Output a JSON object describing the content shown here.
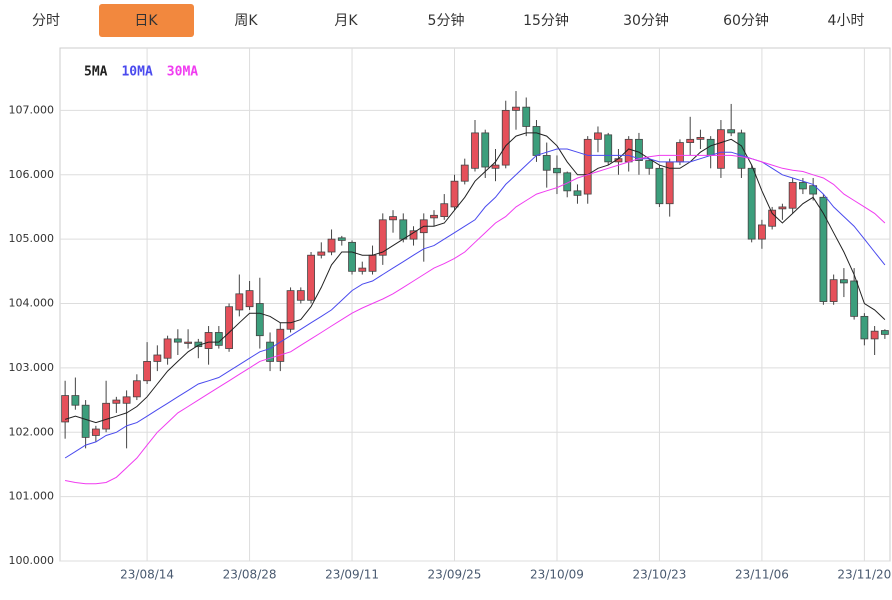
{
  "tabs": [
    "分时",
    "日K",
    "周K",
    "月K",
    "5分钟",
    "15分钟",
    "30分钟",
    "60分钟",
    "4小时"
  ],
  "active_tab": 1,
  "chart_data": {
    "type": "candlestick",
    "categories": [
      null,
      null,
      null,
      null,
      null,
      null,
      null,
      null,
      "23/08/14",
      null,
      null,
      null,
      null,
      null,
      null,
      null,
      null,
      null,
      "23/08/28",
      null,
      null,
      null,
      null,
      null,
      null,
      null,
      null,
      null,
      "23/09/11",
      null,
      null,
      null,
      null,
      null,
      null,
      null,
      null,
      null,
      "23/09/25",
      null,
      null,
      null,
      null,
      null,
      null,
      null,
      null,
      null,
      "23/10/09",
      null,
      null,
      null,
      null,
      null,
      null,
      null,
      null,
      null,
      "23/10/23",
      null,
      null,
      null,
      null,
      null,
      null,
      null,
      null,
      null,
      "23/11/06",
      null,
      null,
      null,
      null,
      null,
      null,
      null,
      null,
      null,
      "23/11/20",
      null,
      null
    ],
    "open": [
      102.16,
      102.57,
      102.42,
      101.95,
      102.05,
      102.45,
      102.45,
      102.55,
      102.8,
      103.1,
      103.15,
      103.45,
      103.38,
      103.4,
      103.3,
      103.55,
      103.3,
      103.9,
      103.95,
      104.0,
      103.4,
      103.1,
      103.6,
      104.05,
      104.05,
      104.75,
      104.8,
      105.02,
      104.95,
      104.5,
      104.5,
      104.75,
      105.3,
      105.3,
      105.0,
      105.1,
      105.33,
      105.35,
      105.5,
      105.9,
      106.1,
      106.65,
      106.1,
      106.15,
      107.0,
      107.05,
      106.75,
      106.3,
      106.1,
      106.03,
      105.75,
      105.7,
      106.55,
      106.62,
      106.2,
      106.2,
      106.55,
      106.22,
      106.1,
      105.55,
      106.2,
      106.5,
      106.55,
      106.55,
      106.1,
      106.7,
      106.65,
      106.1,
      105.0,
      105.2,
      105.47,
      105.48,
      105.88,
      105.83,
      105.65,
      104.03,
      104.37,
      104.35,
      103.8,
      103.45,
      103.58
    ],
    "high": [
      102.8,
      102.85,
      102.5,
      102.1,
      102.8,
      102.55,
      102.65,
      102.9,
      103.4,
      103.35,
      103.5,
      103.6,
      103.6,
      103.45,
      103.65,
      103.65,
      104.0,
      104.45,
      104.35,
      104.4,
      103.55,
      103.7,
      104.25,
      104.25,
      104.8,
      104.95,
      105.15,
      105.05,
      104.98,
      104.65,
      104.9,
      105.4,
      105.45,
      105.4,
      105.2,
      105.4,
      105.45,
      105.7,
      106.0,
      106.25,
      106.85,
      106.7,
      106.4,
      107.15,
      107.3,
      107.2,
      106.85,
      106.5,
      106.3,
      106.05,
      105.85,
      106.6,
      106.75,
      106.65,
      106.4,
      106.6,
      106.65,
      106.25,
      106.15,
      106.25,
      106.55,
      106.9,
      106.7,
      106.6,
      106.85,
      107.1,
      106.7,
      106.15,
      105.3,
      105.5,
      105.55,
      105.95,
      105.95,
      105.95,
      105.7,
      104.45,
      104.55,
      104.55,
      103.85,
      103.65,
      103.6
    ],
    "low": [
      101.9,
      102.35,
      101.75,
      101.85,
      102.0,
      102.3,
      101.75,
      102.5,
      102.75,
      102.95,
      103.05,
      103.2,
      103.3,
      103.15,
      103.05,
      103.3,
      103.25,
      103.8,
      103.9,
      103.3,
      102.95,
      102.95,
      103.55,
      104.0,
      104.0,
      104.7,
      104.75,
      104.9,
      104.45,
      104.45,
      104.45,
      104.6,
      105.1,
      104.95,
      104.9,
      104.65,
      105.2,
      105.3,
      105.45,
      105.85,
      106.05,
      105.95,
      105.9,
      106.1,
      106.7,
      106.6,
      106.2,
      105.8,
      105.7,
      105.65,
      105.55,
      105.55,
      106.35,
      106.15,
      106.0,
      106.05,
      106.0,
      106.0,
      105.5,
      105.35,
      106.15,
      106.3,
      106.4,
      106.1,
      105.95,
      106.6,
      105.95,
      104.95,
      104.85,
      105.15,
      105.3,
      105.4,
      105.7,
      105.6,
      103.98,
      103.98,
      104.1,
      103.75,
      103.35,
      103.2,
      103.45
    ],
    "close": [
      102.57,
      102.42,
      101.92,
      102.05,
      102.45,
      102.5,
      102.55,
      102.8,
      103.1,
      103.2,
      103.45,
      103.4,
      103.4,
      103.33,
      103.55,
      103.35,
      103.95,
      104.15,
      104.2,
      103.5,
      103.1,
      103.6,
      104.2,
      104.2,
      104.75,
      104.8,
      105.0,
      104.98,
      104.5,
      104.55,
      104.75,
      105.3,
      105.35,
      105.0,
      105.13,
      105.3,
      105.37,
      105.55,
      105.9,
      106.15,
      106.65,
      106.12,
      106.15,
      107.0,
      107.05,
      106.75,
      106.3,
      106.07,
      106.03,
      105.75,
      105.68,
      106.55,
      106.65,
      106.2,
      106.25,
      106.55,
      106.22,
      106.1,
      105.55,
      106.2,
      106.5,
      106.55,
      106.58,
      106.3,
      106.7,
      106.65,
      106.1,
      105.0,
      105.22,
      105.45,
      105.5,
      105.88,
      105.78,
      105.7,
      104.03,
      104.37,
      104.32,
      103.8,
      103.45,
      103.57,
      103.52
    ],
    "up_color": "#e5505a",
    "down_color": "#3c9e7c",
    "series": [
      {
        "name": "5MA",
        "color": "#222222",
        "values": [
          102.2,
          102.25,
          102.2,
          102.15,
          102.2,
          102.25,
          102.3,
          102.4,
          102.55,
          102.75,
          102.95,
          103.1,
          103.25,
          103.35,
          103.4,
          103.4,
          103.55,
          103.7,
          103.85,
          103.85,
          103.8,
          103.7,
          103.7,
          103.75,
          103.95,
          104.25,
          104.6,
          104.8,
          104.8,
          104.75,
          104.75,
          104.8,
          104.9,
          105.0,
          105.1,
          105.2,
          105.2,
          105.25,
          105.45,
          105.65,
          105.9,
          106.05,
          106.2,
          106.45,
          106.6,
          106.65,
          106.65,
          106.6,
          106.45,
          106.2,
          106.0,
          106.0,
          106.1,
          106.15,
          106.25,
          106.4,
          106.35,
          106.25,
          106.15,
          106.1,
          106.1,
          106.2,
          106.35,
          106.45,
          106.5,
          106.55,
          106.45,
          106.15,
          105.75,
          105.4,
          105.25,
          105.4,
          105.55,
          105.65,
          105.4,
          105.1,
          104.8,
          104.45,
          104.0,
          103.9,
          103.75
        ]
      },
      {
        "name": "10MA",
        "color": "#4a4aee",
        "values": [
          101.6,
          101.7,
          101.8,
          101.85,
          101.95,
          102.0,
          102.1,
          102.15,
          102.25,
          102.35,
          102.45,
          102.55,
          102.65,
          102.75,
          102.8,
          102.85,
          102.95,
          103.05,
          103.15,
          103.25,
          103.3,
          103.4,
          103.5,
          103.6,
          103.7,
          103.8,
          103.9,
          104.05,
          104.2,
          104.3,
          104.35,
          104.45,
          104.55,
          104.65,
          104.75,
          104.85,
          104.9,
          105.0,
          105.1,
          105.2,
          105.3,
          105.5,
          105.65,
          105.85,
          106.0,
          106.15,
          106.3,
          106.35,
          106.4,
          106.4,
          106.35,
          106.3,
          106.3,
          106.3,
          106.3,
          106.3,
          106.25,
          106.25,
          106.2,
          106.2,
          106.2,
          106.2,
          106.25,
          106.3,
          106.35,
          106.35,
          106.3,
          106.25,
          106.2,
          106.1,
          106.0,
          105.95,
          105.9,
          105.85,
          105.7,
          105.5,
          105.35,
          105.2,
          105.0,
          104.8,
          104.6
        ]
      },
      {
        "name": "30MA",
        "color": "#f03cf0",
        "values": [
          101.25,
          101.22,
          101.2,
          101.2,
          101.22,
          101.3,
          101.45,
          101.6,
          101.8,
          102.0,
          102.15,
          102.3,
          102.4,
          102.5,
          102.6,
          102.7,
          102.8,
          102.9,
          103.0,
          103.1,
          103.15,
          103.2,
          103.25,
          103.35,
          103.45,
          103.55,
          103.65,
          103.75,
          103.85,
          103.93,
          104.0,
          104.07,
          104.15,
          104.25,
          104.35,
          104.45,
          104.55,
          104.62,
          104.7,
          104.8,
          104.95,
          105.1,
          105.25,
          105.35,
          105.5,
          105.6,
          105.7,
          105.75,
          105.8,
          105.87,
          105.95,
          106.0,
          106.05,
          106.1,
          106.15,
          106.2,
          106.25,
          106.28,
          106.3,
          106.3,
          106.3,
          106.3,
          106.3,
          106.3,
          106.3,
          106.3,
          106.28,
          106.25,
          106.2,
          106.15,
          106.1,
          106.07,
          106.05,
          106.0,
          105.95,
          105.85,
          105.7,
          105.6,
          105.5,
          105.4,
          105.25
        ]
      }
    ],
    "ylim": [
      100,
      108
    ],
    "yticks": [
      {
        "value": 100,
        "label": "100.000"
      },
      {
        "value": 101,
        "label": "101.000"
      },
      {
        "value": 102,
        "label": "102.000"
      },
      {
        "value": 103,
        "label": "103.000"
      },
      {
        "value": 104,
        "label": "104.000"
      },
      {
        "value": 105,
        "label": "105.000"
      },
      {
        "value": 106,
        "label": "106.000"
      },
      {
        "value": 107,
        "label": "107.000"
      }
    ],
    "grid": true
  }
}
